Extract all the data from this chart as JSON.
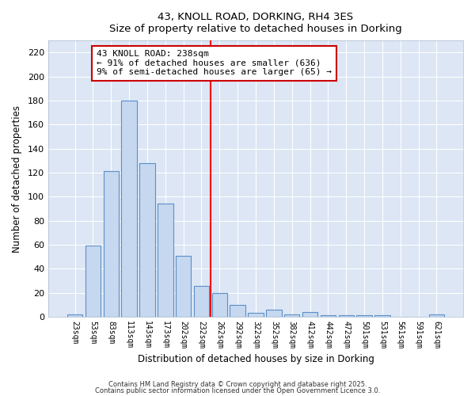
{
  "title": "43, KNOLL ROAD, DORKING, RH4 3ES",
  "subtitle": "Size of property relative to detached houses in Dorking",
  "xlabel": "Distribution of detached houses by size in Dorking",
  "ylabel": "Number of detached properties",
  "bar_labels": [
    "23sqm",
    "53sqm",
    "83sqm",
    "113sqm",
    "143sqm",
    "173sqm",
    "202sqm",
    "232sqm",
    "262sqm",
    "292sqm",
    "322sqm",
    "352sqm",
    "382sqm",
    "412sqm",
    "442sqm",
    "472sqm",
    "501sqm",
    "531sqm",
    "561sqm",
    "591sqm",
    "621sqm"
  ],
  "bar_values": [
    2,
    59,
    121,
    180,
    128,
    94,
    51,
    26,
    20,
    10,
    3,
    6,
    2,
    4,
    1,
    1,
    1,
    1,
    0,
    0,
    2
  ],
  "bar_color": "#c6d8ef",
  "bar_edge_color": "#5b8fc9",
  "vline_x": 7.5,
  "vline_color": "#ff0000",
  "annotation_text": "43 KNOLL ROAD: 238sqm\n← 91% of detached houses are smaller (636)\n9% of semi-detached houses are larger (65) →",
  "annotation_box_color": "#ffffff",
  "annotation_box_edge_color": "#cc0000",
  "ylim": [
    0,
    230
  ],
  "yticks": [
    0,
    20,
    40,
    60,
    80,
    100,
    120,
    140,
    160,
    180,
    200,
    220
  ],
  "plot_bg_color": "#dce6f5",
  "figure_bg_color": "#ffffff",
  "grid_color": "#ffffff",
  "footer1": "Contains HM Land Registry data © Crown copyright and database right 2025.",
  "footer2": "Contains public sector information licensed under the Open Government Licence 3.0."
}
